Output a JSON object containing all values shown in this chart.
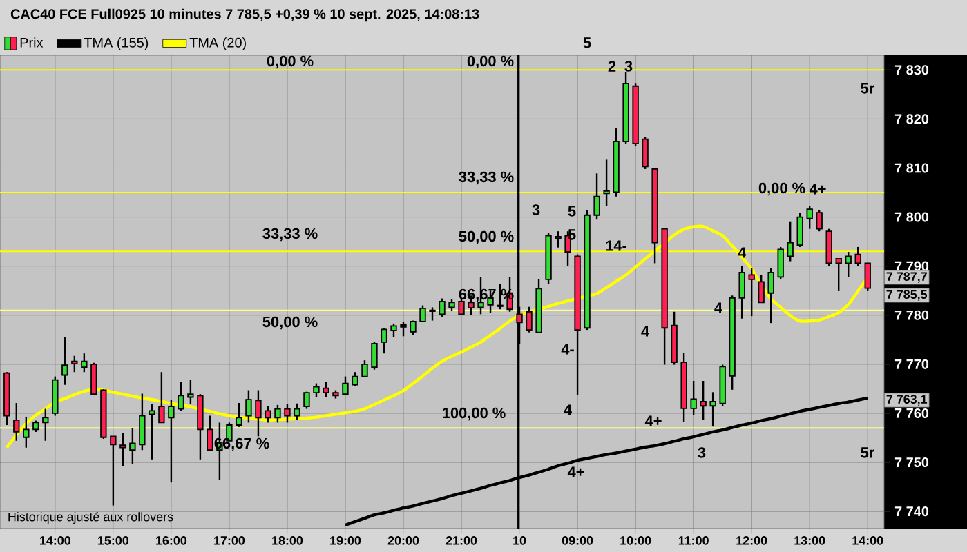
{
  "chart_data": {
    "type": "candlestick",
    "title": "CAC40 FCE Full0925 10 minutes 7 785,5 +0,39 % 10 sept. 2025, 14:08:13",
    "categories": [
      null,
      null,
      null,
      null,
      null,
      "14:00",
      null,
      null,
      null,
      null,
      null,
      "15:00",
      null,
      null,
      null,
      null,
      null,
      "16:00",
      null,
      null,
      null,
      null,
      null,
      "17:00",
      null,
      null,
      null,
      null,
      null,
      "18:00",
      null,
      null,
      null,
      null,
      null,
      "19:00",
      null,
      null,
      null,
      null,
      null,
      "20:00",
      null,
      null,
      null,
      null,
      null,
      "21:00",
      null,
      null,
      null,
      null,
      null,
      "10",
      null,
      null,
      null,
      null,
      null,
      "09:00",
      null,
      null,
      null,
      null,
      null,
      "10:00",
      null,
      null,
      null,
      null,
      null,
      "11:00",
      null,
      null,
      null,
      null,
      null,
      "12:00",
      null,
      null,
      null,
      null,
      null,
      "13:00",
      null,
      null,
      null,
      null,
      null,
      "14:00"
    ],
    "ylim": [
      7736.5,
      7833
    ],
    "yticks": [
      {
        "value": 7740,
        "label": "7 740"
      },
      {
        "value": 7750,
        "label": "7 750"
      },
      {
        "value": 7760,
        "label": "7 760"
      },
      {
        "value": 7770,
        "label": "7 770"
      },
      {
        "value": 7780,
        "label": "7 780"
      },
      {
        "value": 7790,
        "label": "7 790"
      },
      {
        "value": 7800,
        "label": "7 800"
      },
      {
        "value": 7810,
        "label": "7 810"
      },
      {
        "value": 7820,
        "label": "7 820"
      },
      {
        "value": 7830,
        "label": "7 830"
      }
    ],
    "grid": true,
    "legend": "top left",
    "series": [
      {
        "name": "Prix",
        "ohlc": [
          [
            7768.2,
            7768.4,
            7757.6,
            7759.5
          ],
          [
            7758.6,
            7762.1,
            7754.4,
            7756.2
          ],
          [
            7755.1,
            7759.3,
            7753.0,
            7756.7
          ],
          [
            7756.7,
            7758.5,
            7756.2,
            7758.1
          ],
          [
            7758.1,
            7760.9,
            7754.4,
            7759.1
          ],
          [
            7760.0,
            7767.5,
            7759.5,
            7766.8
          ],
          [
            7767.8,
            7775.5,
            7765.8,
            7769.8
          ],
          [
            7770.6,
            7771.7,
            7768.4,
            7770.1
          ],
          [
            7769.4,
            7772.2,
            7768.4,
            7770.6
          ],
          [
            7770.0,
            7770.3,
            7763.7,
            7763.9
          ],
          [
            7764.7,
            7764.9,
            7754.8,
            7755.1
          ],
          [
            7755.3,
            7755.3,
            7741.2,
            7753.6
          ],
          [
            7753.5,
            7756.0,
            7749.2,
            7753.0
          ],
          [
            7752.5,
            7757.0,
            7749.7,
            7753.9
          ],
          [
            7753.6,
            7764.0,
            7752.5,
            7759.5
          ],
          [
            7759.8,
            7761.9,
            7750.6,
            7760.5
          ],
          [
            7761.4,
            7768.4,
            7758.1,
            7758.1
          ],
          [
            7759.1,
            7762.8,
            7745.9,
            7761.4
          ],
          [
            7760.9,
            7766.4,
            7760.5,
            7763.6
          ],
          [
            7763.3,
            7766.8,
            7761.9,
            7763.9
          ],
          [
            7763.6,
            7763.9,
            7750.6,
            7756.7
          ],
          [
            7756.7,
            7759.5,
            7752.5,
            7752.5
          ],
          [
            7752.5,
            7758.1,
            7746.4,
            7754.1
          ],
          [
            7754.4,
            7758.1,
            7754.4,
            7757.6
          ],
          [
            7757.6,
            7762.1,
            7757.2,
            7759.1
          ],
          [
            7759.5,
            7764.7,
            7758.1,
            7762.8
          ],
          [
            7762.6,
            7764.7,
            7755.3,
            7759.1
          ],
          [
            7760.5,
            7761.4,
            7758.1,
            7759.1
          ],
          [
            7759.1,
            7761.7,
            7758.1,
            7760.9
          ],
          [
            7760.9,
            7761.9,
            7758.1,
            7759.5
          ],
          [
            7759.5,
            7762.0,
            7758.6,
            7760.9
          ],
          [
            7761.4,
            7764.4,
            7760.9,
            7764.2
          ],
          [
            7764.2,
            7766.1,
            7763.3,
            7765.4
          ],
          [
            7765.1,
            7766.4,
            7763.3,
            7764.2
          ],
          [
            7764.2,
            7764.7,
            7763.0,
            7763.6
          ],
          [
            7763.9,
            7767.5,
            7763.7,
            7766.1
          ],
          [
            7765.8,
            7768.4,
            7765.6,
            7767.5
          ],
          [
            7767.5,
            7770.8,
            7767.5,
            7770.0
          ],
          [
            7769.4,
            7774.5,
            7768.9,
            7774.2
          ],
          [
            7774.5,
            7777.3,
            7772.2,
            7777.1
          ],
          [
            7776.9,
            7778.3,
            7775.5,
            7777.8
          ],
          [
            7778.0,
            7778.7,
            7775.7,
            7777.6
          ],
          [
            7776.6,
            7778.9,
            7775.9,
            7778.7
          ],
          [
            7778.7,
            7782.0,
            7778.7,
            7781.4
          ],
          [
            7781.0,
            7781.6,
            7778.9,
            7780.8
          ],
          [
            7780.2,
            7783.4,
            7779.7,
            7782.8
          ],
          [
            7781.6,
            7783.2,
            7780.8,
            7782.6
          ],
          [
            7782.8,
            7783.5,
            7780.2,
            7780.2
          ],
          [
            7782.6,
            7784.0,
            7780.0,
            7781.5
          ],
          [
            7781.6,
            7787.8,
            7780.2,
            7782.6
          ],
          [
            7782.1,
            7785.0,
            7780.5,
            7783.5
          ],
          [
            7782.0,
            7786.3,
            7781.2,
            7781.8
          ],
          [
            7784.5,
            7787.8,
            7780.7,
            7781.2
          ],
          [
            7780.2,
            7781.7,
            7774.2,
            7778.5
          ],
          [
            7780.7,
            7781.7,
            7776.5,
            7777.0
          ],
          [
            7776.5,
            7787.3,
            7776.5,
            7785.4
          ],
          [
            7787.3,
            7796.7,
            7786.3,
            7796.2
          ],
          [
            7796.0,
            7797.1,
            7793.8,
            7795.7
          ],
          [
            7796.2,
            7797.1,
            7790.1,
            7792.9
          ],
          [
            7792.0,
            7792.4,
            7763.8,
            7777.0
          ],
          [
            7777.4,
            7801.4,
            7777.0,
            7800.4
          ],
          [
            7800.4,
            7808.9,
            7799.5,
            7804.2
          ],
          [
            7804.8,
            7811.7,
            7802.3,
            7805.3
          ],
          [
            7805.1,
            7818.2,
            7804.2,
            7815.4
          ],
          [
            7815.4,
            7829.5,
            7815.0,
            7827.2
          ],
          [
            7826.7,
            7827.2,
            7814.5,
            7815.0
          ],
          [
            7815.9,
            7816.4,
            7809.8,
            7810.3
          ],
          [
            7809.8,
            7809.8,
            7790.6,
            7794.8
          ],
          [
            7797.6,
            7797.6,
            7769.9,
            7777.4
          ],
          [
            7777.9,
            7780.7,
            7769.9,
            7770.4
          ],
          [
            7770.4,
            7772.3,
            7758.2,
            7761.0
          ],
          [
            7761.0,
            7766.6,
            7759.6,
            7762.9
          ],
          [
            7762.4,
            7766.6,
            7758.7,
            7761.5
          ],
          [
            7761.5,
            7764.3,
            7757.3,
            7762.4
          ],
          [
            7762.0,
            7769.9,
            7761.5,
            7769.5
          ],
          [
            7767.6,
            7784.0,
            7764.8,
            7783.5
          ],
          [
            7783.5,
            7790.1,
            7779.3,
            7788.7
          ],
          [
            7788.2,
            7789.6,
            7779.8,
            7787.3
          ],
          [
            7786.8,
            7788.2,
            7782.6,
            7782.6
          ],
          [
            7784.5,
            7789.6,
            7778.4,
            7788.7
          ],
          [
            7787.8,
            7793.9,
            7787.3,
            7793.4
          ],
          [
            7792.0,
            7799.0,
            7791.0,
            7794.8
          ],
          [
            7794.3,
            7800.9,
            7793.9,
            7800.0
          ],
          [
            7799.7,
            7802.3,
            7797.6,
            7801.6
          ],
          [
            7800.9,
            7801.4,
            7797.1,
            7797.6
          ],
          [
            7797.1,
            7797.6,
            7790.1,
            7790.6
          ],
          [
            7791.5,
            7791.5,
            7784.9,
            7790.6
          ],
          [
            7790.6,
            7792.9,
            7787.8,
            7792.0
          ],
          [
            7792.4,
            7793.9,
            7790.1,
            7790.6
          ],
          [
            7790.6,
            7790.6,
            7784.9,
            7785.5
          ]
        ],
        "colors": [
          "#ff2050",
          "#ff2050",
          "#33dd33",
          "#33dd33",
          "#33dd33",
          "#33dd33",
          "#33dd33",
          "#ff2050",
          "#33dd33",
          "#ff2050",
          "#ff2050",
          "#ff2050",
          "#ff2050",
          "#33dd33",
          "#33dd33",
          "#33dd33",
          "#ff2050",
          "#33dd33",
          "#33dd33",
          "#33dd33",
          "#ff2050",
          "#ff2050",
          "#33dd33",
          "#33dd33",
          "#33dd33",
          "#33dd33",
          "#ff2050",
          "#ff2050",
          "#33dd33",
          "#ff2050",
          "#33dd33",
          "#33dd33",
          "#33dd33",
          "#ff2050",
          "#ff2050",
          "#33dd33",
          "#33dd33",
          "#33dd33",
          "#33dd33",
          "#33dd33",
          "#33dd33",
          "#ff2050",
          "#33dd33",
          "#33dd33",
          "#ff2050",
          "#33dd33",
          "#33dd33",
          "#ff2050",
          "#ff2050",
          "#33dd33",
          "#33dd33",
          "#ff2050",
          "#ff2050",
          "#ff2050",
          "#ff2050",
          "#33dd33",
          "#33dd33",
          "#ff2050",
          "#ff2050",
          "#ff2050",
          "#33dd33",
          "#33dd33",
          "#33dd33",
          "#33dd33",
          "#33dd33",
          "#ff2050",
          "#ff2050",
          "#ff2050",
          "#ff2050",
          "#ff2050",
          "#ff2050",
          "#33dd33",
          "#ff2050",
          "#33dd33",
          "#33dd33",
          "#33dd33",
          "#33dd33",
          "#ff2050",
          "#ff2050",
          "#33dd33",
          "#33dd33",
          "#33dd33",
          "#33dd33",
          "#33dd33",
          "#ff2050",
          "#ff2050",
          "#ff2050",
          "#33dd33",
          "#ff2050",
          "#ff2050"
        ]
      },
      {
        "name": "TMA (155)",
        "type": "line",
        "color": "#000000",
        "values": [
          null,
          null,
          null,
          null,
          null,
          null,
          null,
          null,
          null,
          null,
          null,
          null,
          null,
          null,
          null,
          null,
          null,
          null,
          null,
          null,
          null,
          null,
          null,
          null,
          null,
          null,
          null,
          null,
          null,
          null,
          null,
          null,
          null,
          null,
          null,
          7737.2,
          7737.9,
          7738.6,
          7739.3,
          7739.7,
          7740.2,
          7740.7,
          7741.1,
          7741.6,
          7742.1,
          7742.6,
          7743.2,
          7743.7,
          7744.2,
          7744.7,
          7745.3,
          7745.8,
          7746.3,
          7746.9,
          7747.4,
          7748.0,
          7748.6,
          7749.3,
          7749.8,
          7750.4,
          7750.8,
          7751.2,
          7751.6,
          7751.9,
          7752.3,
          7752.7,
          7753.1,
          7753.4,
          7753.8,
          7754.3,
          7754.8,
          7755.2,
          7755.7,
          7756.2,
          7756.6,
          7757.1,
          7757.6,
          7758.0,
          7758.5,
          7758.9,
          7759.4,
          7759.9,
          7760.4,
          7760.8,
          7761.2,
          7761.6,
          7762.0,
          7762.3,
          7762.7,
          7763.1
        ]
      },
      {
        "name": "TMA (20)",
        "type": "line",
        "color": "#ffff00",
        "values": [
          7753.0,
          7755.6,
          7757.9,
          7759.6,
          7760.9,
          7762.3,
          7763.0,
          7763.8,
          7764.5,
          7764.8,
          7764.7,
          7764.3,
          7763.9,
          7763.5,
          7763.1,
          7762.8,
          7762.4,
          7762.0,
          7761.7,
          7761.3,
          7760.8,
          7760.4,
          7759.9,
          7759.5,
          7759.2,
          7759.0,
          7758.8,
          7758.6,
          7758.7,
          7758.8,
          7758.9,
          7759.0,
          7759.2,
          7759.5,
          7759.8,
          7760.1,
          7760.4,
          7760.9,
          7761.8,
          7762.7,
          7763.6,
          7764.6,
          7766.1,
          7767.6,
          7769.2,
          7770.6,
          7771.6,
          7772.5,
          7773.5,
          7774.5,
          7775.9,
          7777.3,
          7778.8,
          7780.0,
          7780.6,
          7781.2,
          7781.8,
          7782.4,
          7782.9,
          7783.4,
          7783.9,
          7784.4,
          7785.6,
          7786.9,
          7788.2,
          7789.8,
          7791.5,
          7793.1,
          7794.7,
          7796.4,
          7797.5,
          7798.0,
          7798.1,
          7797.2,
          7796.2,
          7794.1,
          7791.8,
          7789.4,
          7786.2,
          7783.3,
          7781.6,
          7779.9,
          7778.8,
          7778.8,
          7779.0,
          7779.7,
          7780.5,
          7782.2,
          7784.9,
          7787.7
        ]
      }
    ],
    "ref_lines": [
      {
        "axis": "y",
        "value": 7830,
        "color": "#ffff00"
      },
      {
        "axis": "y",
        "value": 7805,
        "color": "#ffff00"
      },
      {
        "axis": "y",
        "value": 7793,
        "color": "#ffff00"
      },
      {
        "axis": "y",
        "value": 7781,
        "color": "#ffff88"
      },
      {
        "axis": "y",
        "value": 7757,
        "color": "#ffff88"
      }
    ],
    "annotations": [
      "0,00 %",
      "33,33 %",
      "50,00 %",
      "66,67 %",
      "0,00 %",
      "33,33 %",
      "50,00 %",
      "66,67 %",
      "100,00 %",
      "0,00 %",
      "5",
      "2",
      "3",
      "3",
      "5",
      "5",
      "14-",
      "4-",
      "4",
      "4+",
      "4",
      "4+",
      "3",
      "4",
      "4",
      "4+",
      "5r",
      "5r",
      "7 787,7",
      "7 785,5",
      "7 763,1",
      "Historique ajusté aux rollovers"
    ]
  }
}
